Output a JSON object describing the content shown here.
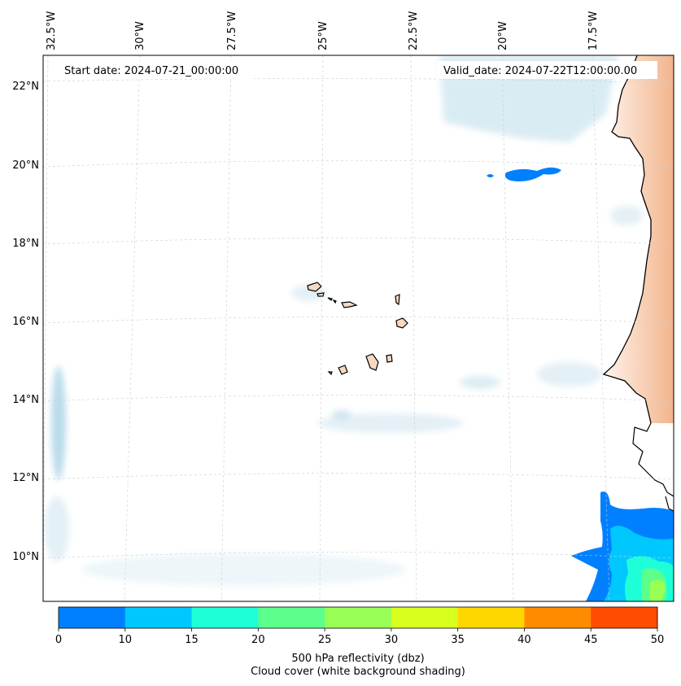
{
  "header": {
    "start_date": "Start date: 2024-07-21_00:00:00",
    "valid_date": "Valid_date: 2024-07-22T12:00:00.00"
  },
  "map": {
    "lon_labels": [
      "32.5°W",
      "30°W",
      "27.5°W",
      "25°W",
      "22.5°W",
      "20°W",
      "17.5°W"
    ],
    "lat_labels": [
      "22°N",
      "20°N",
      "18°N",
      "16°N",
      "14°N",
      "12°N",
      "10°N"
    ],
    "land_color": "#f7d8c1",
    "cloud_color": "#cfe6f0",
    "gridline_color": "#cccccc"
  },
  "colorbar": {
    "ticks": [
      "0",
      "10",
      "15",
      "20",
      "25",
      "30",
      "35",
      "40",
      "45",
      "50"
    ],
    "colors": [
      "#0080ff",
      "#00c8ff",
      "#1effd8",
      "#5cff8c",
      "#98ff55",
      "#d8ff1e",
      "#ffd700",
      "#ff8c00",
      "#ff4c00"
    ],
    "label": "500 hPa reflectivity (dbz)",
    "sublabel": "Cloud cover (white background shading)"
  }
}
